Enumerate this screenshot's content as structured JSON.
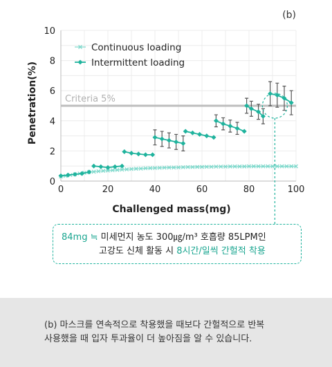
{
  "panel_label": "(b)",
  "callout": {
    "mass": "84mg",
    "approx": "≒",
    "text1": "미세먼지 농도 300㎍/m³  호흡량 85LPM인",
    "text2a": "고강도 신체 활동 시 ",
    "text2b": "8시간/일씩 간헐적 착용"
  },
  "caption": {
    "line1": "(b) 마스크를 연속적으로 착용했을 때보다 간헐적으로 반복",
    "line2": "사용했을 때 입자 투과율이 더 높아짐을 알 수 있습니다."
  },
  "colors": {
    "continuous": "#7fd9cc",
    "intermittent": "#1fb39d",
    "criteria": "#bdbdbd",
    "errorbar": "#555555"
  },
  "chart_data": {
    "type": "line",
    "xlabel": "Challenged mass(mg)",
    "ylabel": "Penetration(%)",
    "xlim": [
      0,
      100
    ],
    "ylim": [
      0,
      10
    ],
    "xticks": [
      0,
      20,
      40,
      60,
      80,
      100
    ],
    "yticks": [
      0,
      2,
      4,
      6,
      8,
      10
    ],
    "grid": true,
    "legend_position": "top-left",
    "criteria": {
      "label": "Criteria 5%",
      "value": 5
    },
    "annotation_x": 91,
    "series": [
      {
        "name": "Continuous loading",
        "marker": "x",
        "x": [
          0,
          2,
          4,
          6,
          8,
          10,
          12,
          14,
          16,
          18,
          20,
          22,
          24,
          26,
          28,
          30,
          32,
          34,
          36,
          38,
          40,
          42,
          44,
          46,
          48,
          50,
          52,
          54,
          56,
          58,
          60,
          62,
          64,
          66,
          68,
          70,
          72,
          74,
          76,
          78,
          80,
          82,
          84,
          86,
          88,
          90,
          92,
          94,
          96,
          98,
          100
        ],
        "y": [
          0.3,
          0.35,
          0.4,
          0.45,
          0.5,
          0.55,
          0.6,
          0.62,
          0.65,
          0.68,
          0.7,
          0.72,
          0.74,
          0.76,
          0.78,
          0.8,
          0.82,
          0.83,
          0.85,
          0.86,
          0.87,
          0.88,
          0.89,
          0.9,
          0.9,
          0.91,
          0.92,
          0.93,
          0.93,
          0.94,
          0.94,
          0.95,
          0.95,
          0.96,
          0.96,
          0.96,
          0.97,
          0.97,
          0.97,
          0.97,
          0.98,
          0.98,
          0.98,
          0.98,
          0.98,
          0.98,
          0.98,
          0.98,
          0.98,
          0.98,
          0.98
        ]
      },
      {
        "name": "Intermittent loading",
        "marker": "diamond",
        "segments": [
          {
            "x": [
              0,
              3,
              6,
              9,
              12
            ],
            "y": [
              0.35,
              0.4,
              0.45,
              0.5,
              0.6
            ],
            "err": [
              0,
              0,
              0,
              0,
              0
            ]
          },
          {
            "x": [
              14,
              17,
              20,
              23,
              26
            ],
            "y": [
              1.0,
              0.95,
              0.9,
              0.95,
              1.0
            ],
            "err": [
              0,
              0,
              0,
              0,
              0
            ]
          },
          {
            "x": [
              27,
              30,
              33,
              36,
              39
            ],
            "y": [
              1.95,
              1.85,
              1.8,
              1.75,
              1.75
            ],
            "err": [
              0,
              0,
              0,
              0,
              0
            ]
          },
          {
            "x": [
              40,
              43,
              46,
              49,
              52
            ],
            "y": [
              2.9,
              2.8,
              2.7,
              2.6,
              2.5
            ],
            "err": [
              0.5,
              0.5,
              0.5,
              0.5,
              0.5
            ]
          },
          {
            "x": [
              53,
              56,
              59,
              62,
              65
            ],
            "y": [
              3.3,
              3.2,
              3.1,
              3.0,
              2.9
            ],
            "err": [
              0,
              0,
              0,
              0,
              0
            ]
          },
          {
            "x": [
              66,
              69,
              72,
              75,
              78
            ],
            "y": [
              4.0,
              3.8,
              3.65,
              3.5,
              3.3
            ],
            "err": [
              0.4,
              0.4,
              0.4,
              0.4,
              0
            ]
          },
          {
            "x": [
              79,
              81,
              84,
              86
            ],
            "y": [
              5.0,
              4.8,
              4.6,
              4.3
            ],
            "err": [
              0.5,
              0.5,
              0.5,
              0.5
            ]
          },
          {
            "x": [
              89,
              92,
              95,
              98
            ],
            "y": [
              5.8,
              5.7,
              5.5,
              5.2
            ],
            "err": [
              0.8,
              0.8,
              0.8,
              0.8
            ]
          }
        ]
      }
    ]
  }
}
